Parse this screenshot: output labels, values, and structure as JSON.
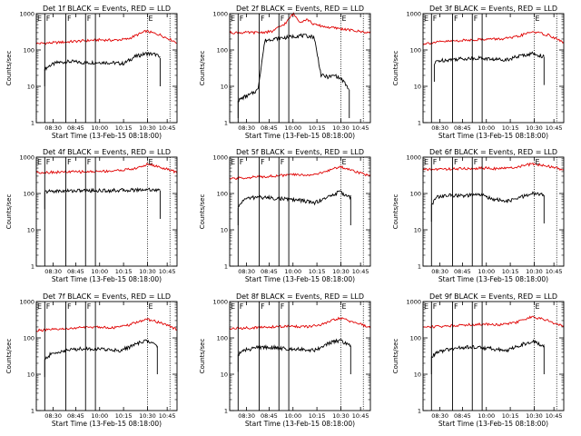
{
  "figure": {
    "colors": {
      "events": "#000000",
      "lld": "#e00000",
      "axes": "#000000"
    }
  },
  "chart_data": [
    {
      "type": "line",
      "title": "Det 1f BLACK = Events, RED = LLD",
      "ylabel": "Counts/sec",
      "xlabel": "Start Time (13-Feb-15 08:18:00)",
      "yscale": "log",
      "ylim": [
        1,
        1000
      ],
      "xticks": [
        "08:30",
        "08:45",
        "10:00",
        "10:15",
        "10:30",
        "10:45"
      ],
      "yticks": [
        "1",
        "10",
        "100",
        "1000"
      ],
      "markers": {
        "E": "E",
        "F": "F"
      },
      "series": [
        {
          "key": "black",
          "x": [
            0.06,
            0.1,
            0.15,
            0.25,
            0.35,
            0.45,
            0.55,
            0.62,
            0.7,
            0.78,
            0.85,
            0.88
          ],
          "y": [
            30,
            38,
            45,
            48,
            44,
            46,
            44,
            42,
            65,
            80,
            75,
            60
          ]
        },
        {
          "key": "red",
          "x": [
            0.0,
            0.15,
            0.3,
            0.45,
            0.55,
            0.65,
            0.78,
            0.88,
            1.0
          ],
          "y": [
            150,
            160,
            175,
            190,
            185,
            200,
            330,
            260,
            160
          ]
        }
      ]
    },
    {
      "type": "line",
      "title": "Det 2f BLACK = Events, RED = LLD",
      "ylabel": "Counts/sec",
      "xlabel": "Start Time (13-Feb-15 08:18:00)",
      "yscale": "log",
      "ylim": [
        1,
        1000
      ],
      "xticks": [
        "08:30",
        "08:45",
        "10:00",
        "10:15",
        "10:30",
        "10:45"
      ],
      "yticks": [
        "1",
        "10",
        "100",
        "1000"
      ],
      "markers": {
        "E": "E",
        "F": "F"
      },
      "series": [
        {
          "key": "black",
          "x": [
            0.06,
            0.1,
            0.15,
            0.2,
            0.25,
            0.3,
            0.4,
            0.5,
            0.6,
            0.65,
            0.7,
            0.75,
            0.8,
            0.85
          ],
          "y": [
            4,
            5,
            6,
            8,
            180,
            200,
            220,
            250,
            230,
            20,
            18,
            20,
            15,
            8
          ]
        },
        {
          "key": "red",
          "x": [
            0.0,
            0.2,
            0.3,
            0.4,
            0.45,
            0.5,
            0.55,
            0.6,
            0.7,
            0.8,
            0.9,
            1.0
          ],
          "y": [
            300,
            300,
            320,
            550,
            1000,
            600,
            700,
            500,
            420,
            380,
            330,
            300
          ]
        }
      ]
    },
    {
      "type": "line",
      "title": "Det 3f BLACK = Events, RED = LLD",
      "ylabel": "Counts/sec",
      "xlabel": "Start Time (13-Feb-15 08:18:00)",
      "yscale": "log",
      "ylim": [
        1,
        1000
      ],
      "xticks": [
        "08:30",
        "08:45",
        "10:00",
        "10:15",
        "10:30",
        "10:45"
      ],
      "yticks": [
        "1",
        "10",
        "100",
        "1000"
      ],
      "markers": {
        "E": "E",
        "F": "F"
      },
      "series": [
        {
          "key": "black",
          "x": [
            0.08,
            0.1,
            0.2,
            0.3,
            0.4,
            0.5,
            0.6,
            0.7,
            0.78,
            0.86
          ],
          "y": [
            40,
            50,
            55,
            58,
            60,
            55,
            55,
            70,
            80,
            65
          ]
        },
        {
          "key": "red",
          "x": [
            0.0,
            0.15,
            0.3,
            0.45,
            0.55,
            0.65,
            0.78,
            0.9,
            1.0
          ],
          "y": [
            150,
            170,
            185,
            200,
            200,
            220,
            320,
            250,
            160
          ]
        }
      ]
    },
    {
      "type": "line",
      "title": "Det 4f BLACK = Events, RED = LLD",
      "ylabel": "Counts/sec",
      "xlabel": "Start Time (13-Feb-15 08:18:00)",
      "yscale": "log",
      "ylim": [
        1,
        1000
      ],
      "xticks": [
        "08:30",
        "08:45",
        "10:00",
        "10:15",
        "10:30",
        "10:45"
      ],
      "yticks": [
        "1",
        "10",
        "100",
        "1000"
      ],
      "markers": {
        "E": "E",
        "F": "F"
      },
      "series": [
        {
          "key": "black",
          "x": [
            0.06,
            0.1,
            0.3,
            0.5,
            0.7,
            0.8,
            0.88
          ],
          "y": [
            110,
            115,
            120,
            120,
            125,
            130,
            120
          ]
        },
        {
          "key": "red",
          "x": [
            0.0,
            0.2,
            0.4,
            0.55,
            0.7,
            0.8,
            0.9,
            1.0
          ],
          "y": [
            380,
            390,
            400,
            420,
            480,
            650,
            500,
            380
          ]
        }
      ]
    },
    {
      "type": "line",
      "title": "Det 5f BLACK = Events, RED = LLD",
      "ylabel": "Counts/sec",
      "xlabel": "Start Time (13-Feb-15 08:18:00)",
      "yscale": "log",
      "ylim": [
        1,
        1000
      ],
      "xticks": [
        "08:30",
        "08:45",
        "10:00",
        "10:15",
        "10:30",
        "10:45"
      ],
      "yticks": [
        "1",
        "10",
        "100",
        "1000"
      ],
      "markers": {
        "E": "E",
        "F": "F"
      },
      "series": [
        {
          "key": "black",
          "x": [
            0.06,
            0.1,
            0.2,
            0.3,
            0.4,
            0.5,
            0.6,
            0.7,
            0.78,
            0.86
          ],
          "y": [
            40,
            70,
            80,
            75,
            70,
            65,
            55,
            80,
            110,
            80
          ]
        },
        {
          "key": "red",
          "x": [
            0.0,
            0.15,
            0.3,
            0.45,
            0.55,
            0.65,
            0.78,
            0.9,
            1.0
          ],
          "y": [
            250,
            280,
            300,
            330,
            320,
            360,
            550,
            400,
            300
          ]
        }
      ]
    },
    {
      "type": "line",
      "title": "Det 6f BLACK = Events, RED = LLD",
      "ylabel": "Counts/sec",
      "xlabel": "Start Time (13-Feb-15 08:18:00)",
      "yscale": "log",
      "ylim": [
        1,
        1000
      ],
      "xticks": [
        "08:30",
        "08:45",
        "10:00",
        "10:15",
        "10:30",
        "10:45"
      ],
      "yticks": [
        "1",
        "10",
        "100",
        "1000"
      ],
      "markers": {
        "E": "E",
        "F": "F"
      },
      "series": [
        {
          "key": "black",
          "x": [
            0.06,
            0.1,
            0.2,
            0.3,
            0.4,
            0.5,
            0.6,
            0.7,
            0.78,
            0.86
          ],
          "y": [
            50,
            80,
            90,
            85,
            95,
            70,
            60,
            80,
            100,
            90
          ]
        },
        {
          "key": "red",
          "x": [
            0.0,
            0.15,
            0.3,
            0.45,
            0.55,
            0.65,
            0.78,
            0.9,
            1.0
          ],
          "y": [
            450,
            470,
            480,
            500,
            480,
            520,
            650,
            550,
            450
          ]
        }
      ]
    },
    {
      "type": "line",
      "title": "Det 7f BLACK = Events, RED = LLD",
      "ylabel": "Counts/sec",
      "xlabel": "Start Time (13-Feb-15 08:18:00)",
      "yscale": "log",
      "ylim": [
        1,
        1000
      ],
      "xticks": [
        "08:30",
        "08:45",
        "10:00",
        "10:15",
        "10:30",
        "10:45"
      ],
      "yticks": [
        "1",
        "10",
        "100",
        "1000"
      ],
      "markers": {
        "E": "E",
        "F": "F"
      },
      "series": [
        {
          "key": "black",
          "x": [
            0.06,
            0.1,
            0.2,
            0.3,
            0.4,
            0.5,
            0.6,
            0.7,
            0.78,
            0.86
          ],
          "y": [
            25,
            35,
            45,
            50,
            50,
            48,
            45,
            65,
            85,
            60
          ]
        },
        {
          "key": "red",
          "x": [
            0.0,
            0.15,
            0.3,
            0.45,
            0.55,
            0.65,
            0.78,
            0.9,
            1.0
          ],
          "y": [
            160,
            170,
            190,
            200,
            190,
            220,
            330,
            250,
            170
          ]
        }
      ]
    },
    {
      "type": "line",
      "title": "Det 8f BLACK = Events, RED = LLD",
      "ylabel": "Counts/sec",
      "xlabel": "Start Time (13-Feb-15 08:18:00)",
      "yscale": "log",
      "ylim": [
        1,
        1000
      ],
      "xticks": [
        "08:30",
        "08:45",
        "10:00",
        "10:15",
        "10:30",
        "10:45"
      ],
      "yticks": [
        "1",
        "10",
        "100",
        "1000"
      ],
      "markers": {
        "E": "E",
        "F": "F"
      },
      "series": [
        {
          "key": "black",
          "x": [
            0.06,
            0.1,
            0.2,
            0.3,
            0.4,
            0.5,
            0.6,
            0.7,
            0.78,
            0.86
          ],
          "y": [
            35,
            45,
            55,
            55,
            50,
            50,
            45,
            70,
            85,
            60
          ]
        },
        {
          "key": "red",
          "x": [
            0.0,
            0.15,
            0.3,
            0.45,
            0.55,
            0.65,
            0.78,
            0.9,
            1.0
          ],
          "y": [
            180,
            190,
            200,
            210,
            200,
            230,
            350,
            260,
            190
          ]
        }
      ]
    },
    {
      "type": "line",
      "title": "Det 9f BLACK = Events, RED = LLD",
      "ylabel": "Counts/sec",
      "xlabel": "Start Time (13-Feb-15 08:18:00)",
      "yscale": "log",
      "ylim": [
        1,
        1000
      ],
      "xticks": [
        "08:30",
        "08:45",
        "10:00",
        "10:15",
        "10:30",
        "10:45"
      ],
      "yticks": [
        "1",
        "10",
        "100",
        "1000"
      ],
      "markers": {
        "E": "E",
        "F": "F"
      },
      "series": [
        {
          "key": "black",
          "x": [
            0.06,
            0.1,
            0.2,
            0.3,
            0.4,
            0.5,
            0.6,
            0.7,
            0.78,
            0.86
          ],
          "y": [
            30,
            40,
            50,
            55,
            55,
            50,
            45,
            65,
            80,
            60
          ]
        },
        {
          "key": "red",
          "x": [
            0.0,
            0.15,
            0.3,
            0.45,
            0.55,
            0.65,
            0.78,
            0.9,
            1.0
          ],
          "y": [
            200,
            210,
            230,
            240,
            230,
            260,
            380,
            290,
            200
          ]
        }
      ]
    }
  ]
}
